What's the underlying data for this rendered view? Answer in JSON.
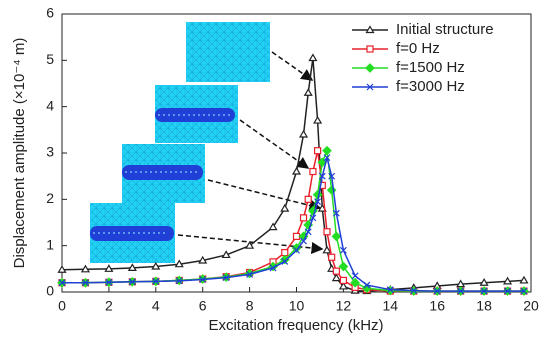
{
  "chart_data": {
    "type": "line",
    "xlabel": "Excitation frequency (kHz)",
    "ylabel": "Displacement amplitude (×10⁻⁴ m)",
    "x": [
      0,
      1,
      2,
      3,
      4,
      5,
      6,
      7,
      8,
      9,
      9.5,
      10,
      10.3,
      10.5,
      10.7,
      10.9,
      11.1,
      11.3,
      11.5,
      11.7,
      12,
      12.5,
      13,
      14,
      15,
      16,
      17,
      18,
      19,
      19.7
    ],
    "series": [
      {
        "name": "Initial structure",
        "color": "#222222",
        "marker": "triangle",
        "values": [
          0.48,
          0.49,
          0.5,
          0.52,
          0.55,
          0.6,
          0.68,
          0.8,
          1.0,
          1.4,
          1.8,
          2.6,
          3.4,
          4.3,
          5.05,
          3.7,
          1.8,
          0.9,
          0.5,
          0.3,
          0.12,
          0.03,
          0.02,
          0.05,
          0.09,
          0.13,
          0.17,
          0.2,
          0.23,
          0.25
        ]
      },
      {
        "name": "f=0 Hz",
        "color": "#e8202a",
        "marker": "square",
        "values": [
          0.2,
          0.2,
          0.21,
          0.22,
          0.23,
          0.25,
          0.28,
          0.33,
          0.42,
          0.65,
          0.85,
          1.2,
          1.6,
          2.0,
          2.6,
          3.05,
          2.3,
          1.3,
          0.75,
          0.45,
          0.25,
          0.1,
          0.05,
          0.02,
          0.02,
          0.02,
          0.02,
          0.02,
          0.02,
          0.02
        ]
      },
      {
        "name": "f=1500 Hz",
        "color": "#22dd22",
        "marker": "diamond",
        "values": [
          0.2,
          0.2,
          0.21,
          0.22,
          0.23,
          0.25,
          0.28,
          0.32,
          0.4,
          0.55,
          0.7,
          0.95,
          1.2,
          1.45,
          1.75,
          2.1,
          2.8,
          3.05,
          2.2,
          1.2,
          0.55,
          0.2,
          0.08,
          0.03,
          0.02,
          0.02,
          0.02,
          0.02,
          0.02,
          0.02
        ]
      },
      {
        "name": "f=3000 Hz",
        "color": "#1f3fd6",
        "marker": "x",
        "values": [
          0.2,
          0.2,
          0.21,
          0.22,
          0.23,
          0.24,
          0.27,
          0.31,
          0.38,
          0.52,
          0.66,
          0.9,
          1.1,
          1.3,
          1.6,
          1.95,
          2.5,
          2.9,
          2.5,
          1.7,
          0.9,
          0.35,
          0.15,
          0.05,
          0.03,
          0.02,
          0.02,
          0.02,
          0.02,
          0.02
        ]
      }
    ],
    "xlim": [
      0,
      20
    ],
    "xticks": [
      0,
      2,
      4,
      6,
      8,
      10,
      12,
      14,
      16,
      18,
      20
    ],
    "ylim": [
      0,
      6
    ],
    "yticks": [
      0,
      1,
      2,
      3,
      4,
      5,
      6
    ],
    "legend": "upper right"
  }
}
